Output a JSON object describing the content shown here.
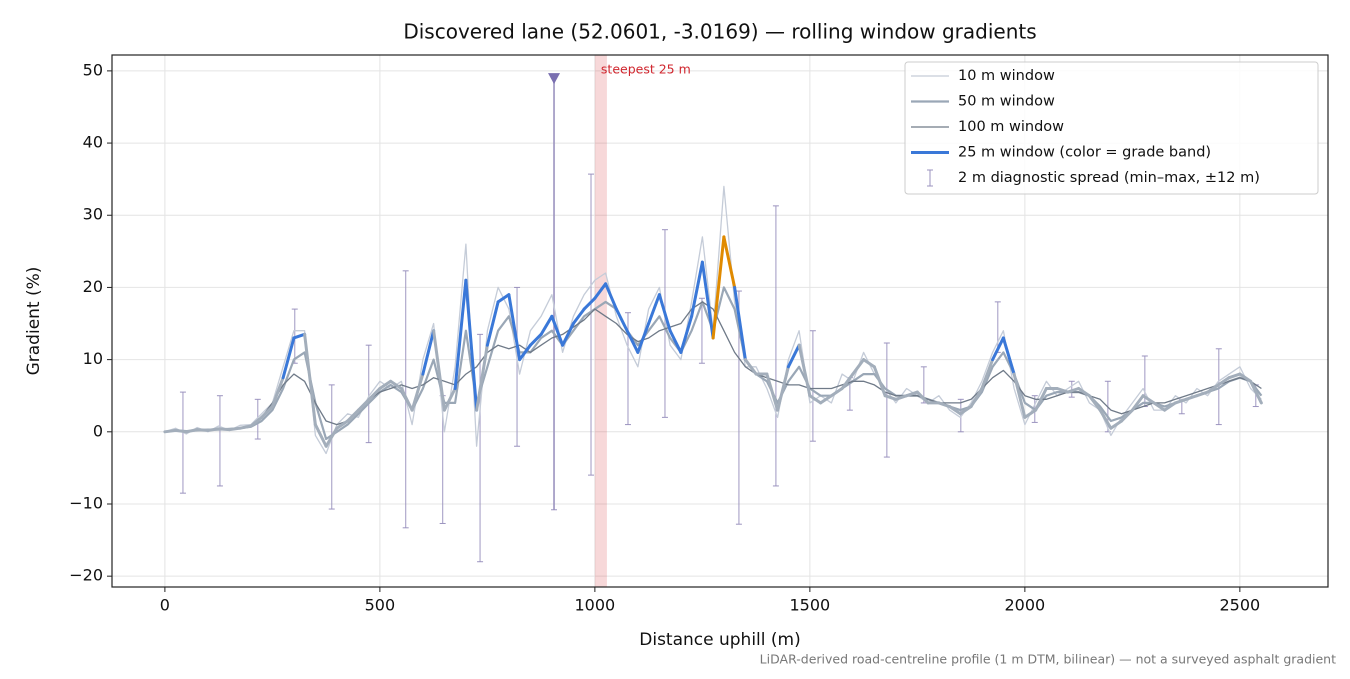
{
  "chart_data": {
    "type": "line",
    "title": "Discovered lane (52.0601, -3.0169) — rolling window gradients",
    "x_label": "Distance uphill (m)",
    "y_label": "Gradient (%)",
    "footnote": "LiDAR-derived road-centreline profile (1 m DTM, bilinear) — not a surveyed asphalt gradient",
    "xlim": [
      -123,
      2705
    ],
    "ylim": [
      -21.5,
      52.2
    ],
    "xticks": [
      0,
      500,
      1000,
      1500,
      2000,
      2500
    ],
    "yticks": [
      {
        "value": -20,
        "label": "−20"
      },
      {
        "value": -10,
        "label": "−10"
      },
      0,
      10,
      20,
      30,
      40,
      50
    ],
    "grid": true,
    "legend": "upper right",
    "x": [
      0,
      25,
      50,
      75,
      100,
      125,
      150,
      175,
      200,
      225,
      250,
      275,
      300,
      325,
      350,
      375,
      400,
      425,
      450,
      475,
      500,
      525,
      550,
      575,
      600,
      625,
      650,
      675,
      700,
      725,
      750,
      775,
      800,
      825,
      850,
      875,
      900,
      925,
      950,
      975,
      1000,
      1025,
      1050,
      1075,
      1100,
      1125,
      1150,
      1175,
      1200,
      1225,
      1250,
      1275,
      1300,
      1325,
      1350,
      1375,
      1400,
      1425,
      1450,
      1475,
      1500,
      1525,
      1550,
      1575,
      1600,
      1625,
      1650,
      1675,
      1700,
      1725,
      1750,
      1775,
      1800,
      1825,
      1850,
      1875,
      1900,
      1925,
      1950,
      1975,
      2000,
      2025,
      2050,
      2075,
      2100,
      2125,
      2150,
      2175,
      2200,
      2225,
      2250,
      2275,
      2300,
      2325,
      2350,
      2375,
      2400,
      2425,
      2450,
      2475,
      2500,
      2525,
      2550
    ],
    "series": [
      {
        "name": "10 m window",
        "color": "#c5ccd8",
        "width": 1.3,
        "values": [
          0,
          0.5,
          -0.3,
          0.6,
          0,
          0.8,
          0.2,
          0.9,
          1,
          2.5,
          4,
          9,
          14,
          14,
          -0.5,
          -3,
          1,
          2.5,
          2,
          5,
          7,
          6,
          7,
          1,
          10,
          15,
          0,
          9,
          26,
          -2,
          14,
          20,
          17,
          8,
          14,
          16,
          19,
          11,
          16,
          19,
          21,
          22,
          16,
          12,
          9,
          17,
          20,
          12,
          10,
          18,
          27,
          14,
          34,
          18,
          9,
          9,
          6,
          2,
          10,
          14,
          4,
          5,
          4,
          8,
          7,
          11,
          8,
          6,
          4,
          6,
          5,
          4,
          5,
          3,
          2,
          4,
          7,
          11,
          14,
          6,
          1,
          4,
          7,
          5,
          6,
          7,
          4,
          3,
          -0.5,
          2,
          4,
          6,
          3,
          3,
          5,
          4,
          6,
          5,
          7,
          8,
          9,
          6,
          4.5
        ]
      },
      {
        "name": "50 m window",
        "color": "#9aa7b6",
        "width": 2.2,
        "values": [
          0,
          0.2,
          0.1,
          0.2,
          0.3,
          0.3,
          0.4,
          0.5,
          0.7,
          1.5,
          3,
          6,
          10,
          11,
          4,
          -1,
          0,
          1,
          2.5,
          4,
          5.5,
          6.5,
          5.5,
          3,
          6,
          10,
          4,
          4,
          14,
          4,
          9,
          14,
          16,
          11,
          11,
          13,
          14,
          12,
          14,
          16,
          17,
          18,
          17,
          14,
          12,
          14,
          16,
          13,
          11,
          14,
          18,
          14,
          20,
          17,
          10,
          8,
          7,
          4,
          7,
          9,
          6,
          5,
          5,
          6,
          7,
          8,
          8,
          6,
          5,
          5,
          5,
          4.5,
          4,
          3.5,
          3,
          3.5,
          5.5,
          9,
          11,
          8,
          4,
          3,
          5,
          5.5,
          5.5,
          5.5,
          5,
          3.5,
          1.5,
          2,
          3,
          4,
          4,
          3.5,
          4,
          4.5,
          5,
          5.5,
          6,
          7,
          7.5,
          7,
          5
        ]
      },
      {
        "name": "100 m window",
        "color": "#6f7a88",
        "width": 1.3,
        "values": [
          0,
          0.1,
          0.1,
          0.2,
          0.2,
          0.3,
          0.4,
          0.5,
          0.8,
          2,
          4,
          6.5,
          8,
          7,
          4,
          1.5,
          1,
          1.5,
          3,
          4.5,
          5.5,
          6,
          6.5,
          6,
          6.5,
          7.5,
          7,
          6.5,
          8,
          9,
          11,
          12,
          11.5,
          12,
          11,
          12,
          13,
          13.5,
          14.5,
          15.5,
          17,
          16,
          15,
          13.5,
          12.5,
          13,
          14,
          14.5,
          15,
          17,
          18,
          17,
          14,
          11,
          9,
          8,
          7.5,
          7,
          6.5,
          6.5,
          6,
          6,
          6,
          6.5,
          7,
          7,
          6.5,
          5.5,
          5,
          5,
          5,
          4.5,
          4,
          4,
          4,
          4.5,
          6,
          7.5,
          8.5,
          7,
          5,
          4.5,
          4.5,
          5,
          5.5,
          5.5,
          5,
          4.5,
          3,
          2.5,
          3,
          3.5,
          4,
          4,
          4.5,
          5,
          5.5,
          6,
          6.5,
          7,
          7.5,
          7,
          6
        ]
      },
      {
        "name": "25 m window (color = grade band)",
        "color": "#3a78d8",
        "width": 3,
        "band_colored": true,
        "values": [
          0,
          0.2,
          0,
          0.3,
          0.2,
          0.4,
          0.3,
          0.5,
          0.8,
          2,
          3.5,
          7.5,
          13,
          13.5,
          1,
          -2,
          0.5,
          1.5,
          3,
          4.5,
          6,
          7,
          6,
          3,
          8,
          14,
          3,
          6,
          21,
          3,
          12,
          18,
          19,
          10,
          12,
          13.5,
          16,
          12,
          15,
          17,
          18.5,
          20.5,
          17,
          14,
          11,
          15,
          19,
          14,
          11,
          16,
          23.5,
          13,
          27,
          20,
          10,
          8,
          8,
          3,
          9,
          12,
          5,
          4,
          5,
          6,
          8,
          10,
          9,
          5,
          4.5,
          5,
          5.5,
          4,
          4,
          3.5,
          2.5,
          3.5,
          6,
          10,
          13,
          8,
          2,
          3,
          6,
          6,
          5.5,
          6,
          5,
          3,
          0.5,
          1.5,
          3,
          5,
          4,
          3,
          4,
          4.5,
          5,
          5.5,
          6.5,
          7.5,
          8,
          7,
          4
        ]
      }
    ],
    "grade_band_thresholds": [
      10,
      20,
      25
    ],
    "grade_band_colors": [
      "#a3aebb",
      "#3a78d8",
      "#e08a00",
      "#c0182a"
    ],
    "spread": {
      "name": "2 m diagnostic spread (min–max, ±12 m)",
      "color": "#9b93bf",
      "x": [
        42,
        128,
        216,
        302,
        388,
        474,
        560,
        646,
        733,
        819,
        905,
        991,
        1077,
        1163,
        1249,
        1335,
        1421,
        1507,
        1593,
        1679,
        1765,
        1851,
        1937,
        2023,
        2109,
        2193,
        2279,
        2365,
        2451,
        2537
      ],
      "min": [
        -8.5,
        -7.5,
        -1,
        9.5,
        -10.7,
        -1.5,
        -13.3,
        -12.7,
        -18,
        -2,
        -10.8,
        -6,
        1,
        2,
        9.5,
        -12.8,
        -7.5,
        -1.3,
        3,
        -3.5,
        4,
        0,
        11,
        1.3,
        4.8,
        0,
        3.5,
        2.5,
        1,
        3.5
      ],
      "max": [
        5.5,
        5,
        4.5,
        17,
        6.5,
        12,
        22.3,
        5,
        13.5,
        20,
        49,
        35.7,
        16.5,
        28,
        18.5,
        19.5,
        31.3,
        14,
        7.5,
        12.3,
        9,
        4.5,
        18,
        5,
        7,
        7,
        10.5,
        4.5,
        11.5,
        6.5
      ]
    },
    "highlight": {
      "label": "steepest 25 m",
      "color": "#d0262e",
      "span": [
        1000,
        1028
      ]
    }
  }
}
